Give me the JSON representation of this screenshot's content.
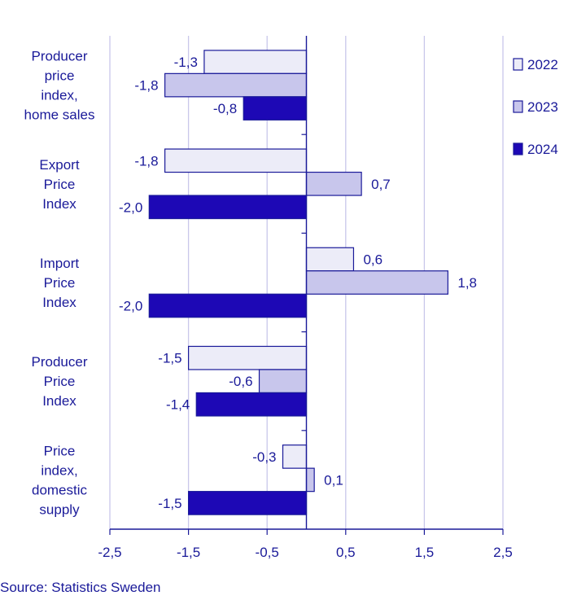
{
  "chart_data": {
    "type": "bar",
    "orientation": "horizontal",
    "categories": [
      [
        "Producer",
        "price",
        "index,",
        "home sales"
      ],
      [
        "Export",
        "Price",
        "Index"
      ],
      [
        "Import",
        "Price",
        "Index"
      ],
      [
        "Producer",
        "Price",
        "Index"
      ],
      [
        "Price",
        "index,",
        "domestic",
        "supply"
      ]
    ],
    "series": [
      {
        "name": "2022",
        "color": "#ececf8",
        "values": [
          -1.3,
          -1.8,
          0.6,
          -1.5,
          -0.3
        ],
        "labels": [
          "-1,3",
          "-1,8",
          "0,6",
          "-1,5",
          "-0,3"
        ]
      },
      {
        "name": "2023",
        "color": "#c8c6ec",
        "values": [
          -1.8,
          0.7,
          1.8,
          -0.6,
          0.1
        ],
        "labels": [
          "-1,8",
          "0,7",
          "1,8",
          "-0,6",
          "0,1"
        ]
      },
      {
        "name": "2024",
        "color": "#1d08b5",
        "values": [
          -0.8,
          -2.0,
          -2.0,
          -1.4,
          -1.5
        ],
        "labels": [
          "-0,8",
          "-2,0",
          "-2,0",
          "-1,4",
          "-1,5"
        ]
      }
    ],
    "xlim": [
      -2.5,
      2.5
    ],
    "xticks": [
      -2.5,
      -1.5,
      -0.5,
      0.5,
      1.5,
      2.5
    ],
    "xtick_labels": [
      "-2,5",
      "-1,5",
      "-0,5",
      "0,5",
      "1,5",
      "2,5"
    ],
    "gridlines": true,
    "legend_position": "top-right",
    "outline_color": "#1a1a99"
  },
  "source": "Source: Statistics Sweden"
}
